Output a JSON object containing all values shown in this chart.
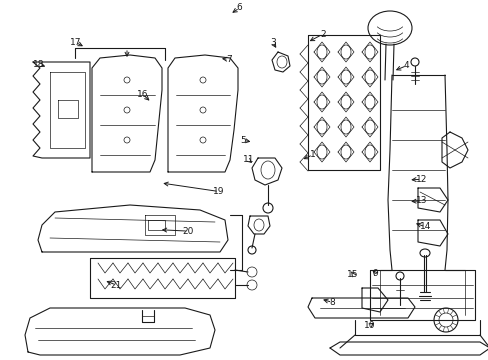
{
  "bg_color": "#ffffff",
  "line_color": "#1a1a1a",
  "fig_width": 4.89,
  "fig_height": 3.6,
  "dpi": 100,
  "callouts": {
    "1": [
      0.64,
      0.43,
      0.615,
      0.445
    ],
    "2": [
      0.655,
      0.095,
      0.625,
      0.115
    ],
    "3": [
      0.555,
      0.115,
      0.565,
      0.135
    ],
    "4": [
      0.83,
      0.175,
      0.805,
      0.19
    ],
    "5": [
      0.5,
      0.39,
      0.52,
      0.395
    ],
    "6": [
      0.49,
      0.02,
      0.472,
      0.035
    ],
    "7": [
      0.468,
      0.165,
      0.448,
      0.162
    ],
    "8": [
      0.68,
      0.84,
      0.657,
      0.83
    ],
    "9": [
      0.765,
      0.765,
      0.758,
      0.75
    ],
    "10": [
      0.758,
      0.9,
      0.772,
      0.888
    ],
    "11": [
      0.51,
      0.44,
      0.522,
      0.455
    ],
    "12": [
      0.862,
      0.495,
      0.835,
      0.498
    ],
    "13": [
      0.862,
      0.555,
      0.835,
      0.558
    ],
    "14": [
      0.87,
      0.63,
      0.845,
      0.62
    ],
    "15": [
      0.725,
      0.76,
      0.718,
      0.745
    ],
    "16": [
      0.292,
      0.26,
      0.31,
      0.285
    ],
    "17": [
      0.155,
      0.115,
      0.175,
      0.13
    ],
    "18": [
      0.082,
      0.175,
      0.1,
      0.185
    ],
    "19": [
      0.448,
      0.53,
      0.33,
      0.505
    ],
    "20": [
      0.385,
      0.64,
      0.325,
      0.635
    ],
    "21": [
      0.238,
      0.79,
      0.215,
      0.775
    ]
  }
}
